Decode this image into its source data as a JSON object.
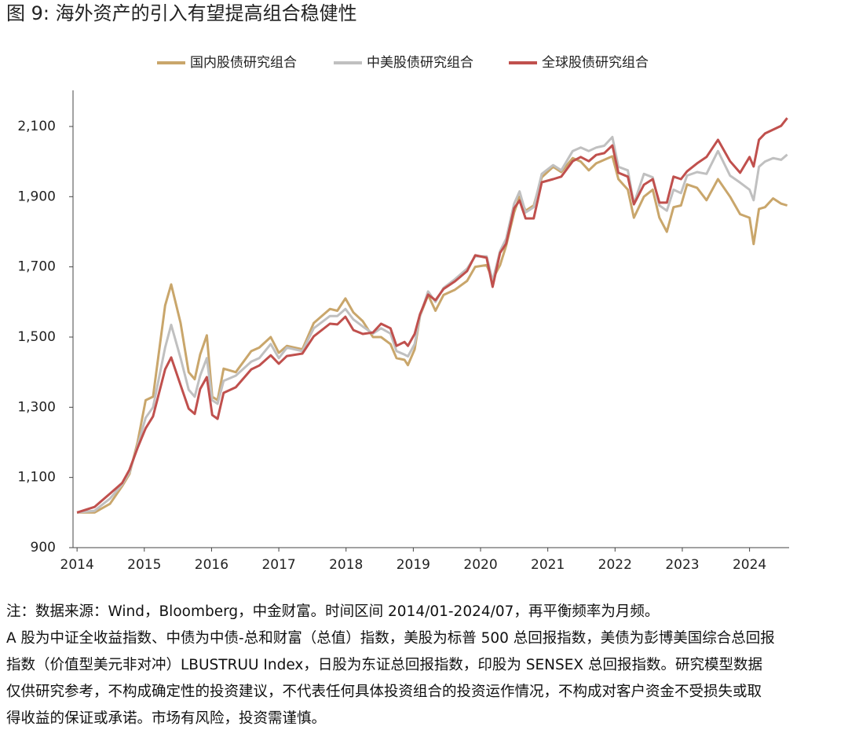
{
  "chart_data": {
    "type": "line",
    "title": "图 9:  海外资产的引入有望提高组合稳健性",
    "x": [
      2014.0,
      2014.26,
      2014.49,
      2014.67,
      2014.78,
      2014.9,
      2015.02,
      2015.13,
      2015.31,
      2015.4,
      2015.54,
      2015.66,
      2015.75,
      2015.83,
      2015.93,
      2016.01,
      2016.09,
      2016.18,
      2016.36,
      2016.59,
      2016.71,
      2016.88,
      2017.0,
      2017.12,
      2017.35,
      2017.52,
      2017.76,
      2017.87,
      2017.99,
      2018.11,
      2018.25,
      2018.4,
      2018.52,
      2018.66,
      2018.75,
      2018.87,
      2018.92,
      2019.02,
      2019.1,
      2019.22,
      2019.33,
      2019.45,
      2019.62,
      2019.8,
      2019.92,
      2020.09,
      2020.18,
      2020.29,
      2020.38,
      2020.5,
      2020.58,
      2020.67,
      2020.79,
      2020.91,
      2021.08,
      2021.2,
      2021.37,
      2021.49,
      2021.61,
      2021.72,
      2021.84,
      2021.96,
      2022.05,
      2022.19,
      2022.28,
      2022.43,
      2022.56,
      2022.66,
      2022.77,
      2022.87,
      2022.98,
      2023.07,
      2023.22,
      2023.36,
      2023.53,
      2023.71,
      2023.86,
      2024.0,
      2024.06,
      2024.14,
      2024.23,
      2024.35,
      2024.47,
      2024.56
    ],
    "series": [
      {
        "name": "国内股债研究组合",
        "color": "#c9a66b",
        "values": [
          1000,
          1000,
          1025,
          1075,
          1110,
          1200,
          1320,
          1330,
          1590,
          1650,
          1540,
          1400,
          1380,
          1450,
          1505,
          1330,
          1320,
          1410,
          1400,
          1460,
          1470,
          1500,
          1455,
          1475,
          1465,
          1540,
          1580,
          1575,
          1610,
          1570,
          1545,
          1500,
          1500,
          1480,
          1440,
          1435,
          1420,
          1465,
          1560,
          1620,
          1575,
          1620,
          1635,
          1660,
          1700,
          1705,
          1665,
          1705,
          1760,
          1855,
          1900,
          1860,
          1875,
          1955,
          1985,
          1970,
          2010,
          2000,
          1975,
          1995,
          2005,
          2015,
          1950,
          1920,
          1840,
          1900,
          1920,
          1840,
          1800,
          1870,
          1875,
          1935,
          1925,
          1890,
          1950,
          1900,
          1850,
          1840,
          1765,
          1865,
          1870,
          1895,
          1880,
          1875
        ]
      },
      {
        "name": "中美股债研究组合",
        "color": "#c0c0c0",
        "values": [
          1000,
          1005,
          1040,
          1080,
          1115,
          1190,
          1270,
          1300,
          1470,
          1535,
          1440,
          1350,
          1330,
          1390,
          1440,
          1320,
          1310,
          1375,
          1390,
          1430,
          1440,
          1480,
          1440,
          1470,
          1460,
          1525,
          1560,
          1560,
          1580,
          1550,
          1530,
          1510,
          1525,
          1510,
          1460,
          1450,
          1445,
          1480,
          1560,
          1630,
          1600,
          1640,
          1665,
          1695,
          1730,
          1730,
          1660,
          1745,
          1780,
          1880,
          1915,
          1855,
          1870,
          1965,
          1990,
          1975,
          2030,
          2040,
          2030,
          2040,
          2045,
          2070,
          1985,
          1975,
          1880,
          1965,
          1955,
          1875,
          1860,
          1920,
          1910,
          1960,
          1970,
          1965,
          2030,
          1960,
          1940,
          1920,
          1890,
          1985,
          2000,
          2010,
          2005,
          2020
        ]
      },
      {
        "name": "全球股债研究组合",
        "color": "#c0504d",
        "values": [
          1000,
          1016,
          1054,
          1084,
          1122,
          1184,
          1240,
          1274,
          1408,
          1442,
          1363,
          1296,
          1281,
          1352,
          1386,
          1278,
          1267,
          1341,
          1357,
          1408,
          1419,
          1448,
          1424,
          1446,
          1453,
          1502,
          1538,
          1536,
          1558,
          1520,
          1509,
          1513,
          1538,
          1525,
          1475,
          1486,
          1475,
          1509,
          1565,
          1621,
          1605,
          1637,
          1659,
          1688,
          1733,
          1726,
          1643,
          1740,
          1766,
          1867,
          1889,
          1838,
          1838,
          1941,
          1950,
          1957,
          2001,
          2013,
          2001,
          2019,
          2024,
          2046,
          1968,
          1957,
          1878,
          1934,
          1950,
          1883,
          1883,
          1957,
          1950,
          1972,
          1995,
          2013,
          2062,
          2001,
          1968,
          2013,
          1986,
          2062,
          2080,
          2091,
          2102,
          2124
        ]
      }
    ],
    "xlim": [
      2013.94,
      2024.6
    ],
    "xticks": [
      2014,
      2015,
      2016,
      2017,
      2018,
      2019,
      2020,
      2021,
      2022,
      2023,
      2024
    ],
    "ylim": [
      900,
      2200
    ],
    "yticks": [
      900,
      {
        "value": 1100,
        "label": "1,100"
      },
      {
        "value": 1300,
        "label": "1,300"
      },
      {
        "value": 1500,
        "label": "1,500"
      },
      {
        "value": 1700,
        "label": "1,700"
      },
      {
        "value": 1900,
        "label": "1,900"
      },
      {
        "value": 2100,
        "label": "2,100"
      }
    ],
    "notes": [
      "注：数据来源：Wind，Bloomberg，中金财富。时间区间 2014/01-2024/07，再平衡频率为月频。",
      "A 股为中证全收益指数、中债为中债-总和财富（总值）指数，美股为标普 500 总回报指数，美债为彭博美国综合总回报",
      "指数（价值型美元非对冲）LBUSTRUU Index，日股为东证总回报指数，印股为 SENSEX 总回报指数。研究模型数据",
      "仅供研究参考，不构成确定性的投资建议，不代表任何具体投资组合的投资运作情况，不构成对客户资金不受损失或取",
      "得收益的保证或承诺。市场有风险，投资需谨慎。"
    ]
  }
}
